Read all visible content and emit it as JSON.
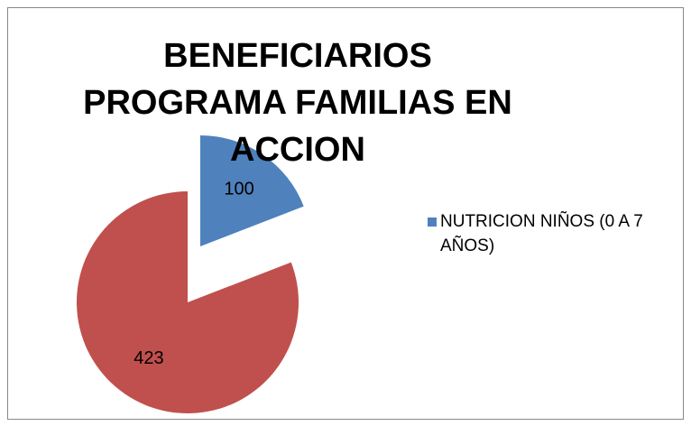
{
  "chart_data": {
    "type": "pie",
    "title": "BENEFICIARIOS PROGRAMA FAMILIAS EN ACCION",
    "categories": [
      "NUTRICION NIÑOS (0 A 7 AÑOS)",
      null
    ],
    "values": [
      100,
      423
    ],
    "colors": [
      "#4f81bd",
      "#c0504d"
    ],
    "legend": "right"
  }
}
